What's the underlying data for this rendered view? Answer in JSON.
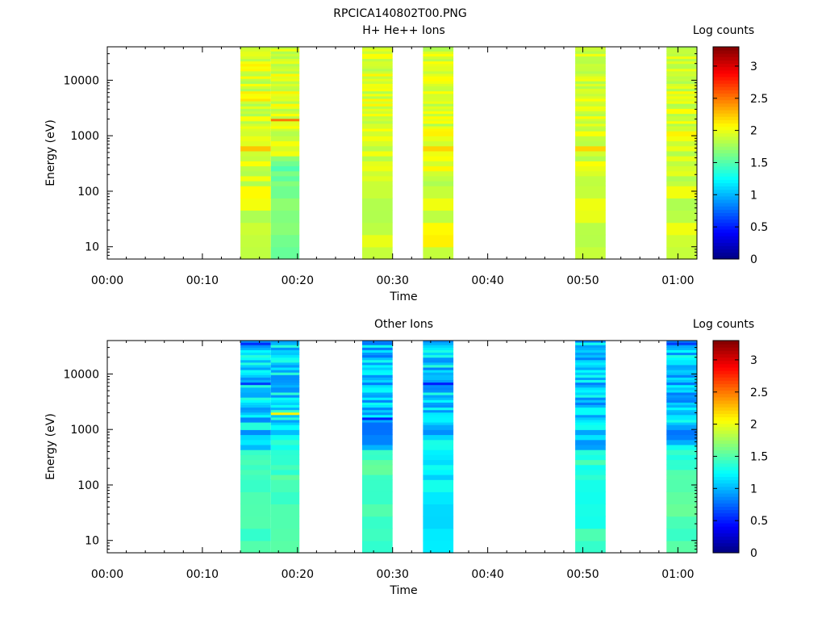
{
  "figure_title": "RPCICA140802T00.PNG",
  "colorbar": {
    "label": "Log counts",
    "min": 0,
    "max": 3.3,
    "ticks": [
      0,
      0.5,
      1,
      1.5,
      2,
      2.5,
      3
    ],
    "tick_labels": [
      "0",
      "0.5",
      "1",
      "1.5",
      "2",
      "2.5",
      "3"
    ],
    "colormap": "jet"
  },
  "chart_data": [
    {
      "type": "heatmap",
      "title": "H+ He++ Ions",
      "xlabel": "Time",
      "ylabel": "Energy (eV)",
      "xlim_minutes": [
        0,
        62
      ],
      "x_ticks_minutes": [
        0,
        10,
        20,
        30,
        40,
        50,
        60
      ],
      "x_tick_labels": [
        "00:00",
        "00:10",
        "00:20",
        "00:30",
        "00:40",
        "00:50",
        "01:00"
      ],
      "y_scale": "log",
      "ylim": [
        6,
        40000
      ],
      "y_ticks": [
        10,
        100,
        1000,
        10000
      ],
      "y_tick_labels": [
        "10",
        "100",
        "1000",
        "10000"
      ],
      "columns": [
        {
          "t0": 14.0,
          "t1": 17.2,
          "seed": 11,
          "base": 1.95,
          "amp": 0.18,
          "events": [
            {
              "e": 600,
              "v": 2.25
            },
            {
              "e": 4500,
              "v": 2.15
            }
          ]
        },
        {
          "t0": 17.2,
          "t1": 20.2,
          "seed": 23,
          "base": 1.95,
          "amp": 0.16,
          "low": 1.6,
          "events": [
            {
              "e": 1900,
              "v": 2.5
            }
          ]
        },
        {
          "t0": 26.8,
          "t1": 30.0,
          "seed": 37,
          "base": 1.95,
          "amp": 0.15,
          "events": []
        },
        {
          "t0": 33.2,
          "t1": 36.4,
          "seed": 41,
          "base": 1.95,
          "amp": 0.16,
          "events": [
            {
              "e": 600,
              "v": 2.2
            }
          ]
        },
        {
          "t0": 49.2,
          "t1": 52.4,
          "seed": 53,
          "base": 1.95,
          "amp": 0.15,
          "events": [
            {
              "e": 600,
              "v": 2.2
            }
          ]
        },
        {
          "t0": 58.8,
          "t1": 62.0,
          "seed": 67,
          "base": 1.95,
          "amp": 0.16,
          "events": []
        }
      ]
    },
    {
      "type": "heatmap",
      "title": "Other Ions",
      "xlabel": "Time",
      "ylabel": "Energy (eV)",
      "xlim_minutes": [
        0,
        62
      ],
      "x_ticks_minutes": [
        0,
        10,
        20,
        30,
        40,
        50,
        60
      ],
      "x_tick_labels": [
        "00:00",
        "00:10",
        "00:20",
        "00:30",
        "00:40",
        "00:50",
        "01:00"
      ],
      "y_scale": "log",
      "ylim": [
        6,
        40000
      ],
      "y_ticks": [
        10,
        100,
        1000,
        10000
      ],
      "y_tick_labels": [
        "10",
        "100",
        "1000",
        "10000"
      ],
      "columns": [
        {
          "t0": 14.0,
          "t1": 17.2,
          "seed": 71,
          "base": 1.1,
          "amp": 0.28,
          "low": 1.45,
          "events": [
            {
              "e": 35000,
              "v": 0.55
            },
            {
              "e": 7000,
              "v": 0.6
            }
          ]
        },
        {
          "t0": 17.2,
          "t1": 20.2,
          "seed": 83,
          "base": 1.15,
          "amp": 0.28,
          "low": 1.45,
          "events": [
            {
              "e": 1900,
              "v": 2.1
            }
          ]
        },
        {
          "t0": 26.8,
          "t1": 30.0,
          "seed": 97,
          "base": 1.05,
          "amp": 0.28,
          "low": 1.5,
          "events": [
            {
              "e": 1600,
              "v": 0.5
            }
          ]
        },
        {
          "t0": 33.2,
          "t1": 36.4,
          "seed": 101,
          "base": 1.1,
          "amp": 0.28,
          "low": 1.2,
          "events": [
            {
              "e": 7000,
              "v": 0.5
            }
          ]
        },
        {
          "t0": 49.2,
          "t1": 52.4,
          "seed": 113,
          "base": 1.05,
          "amp": 0.26,
          "low": 1.4,
          "events": []
        },
        {
          "t0": 58.8,
          "t1": 62.0,
          "seed": 127,
          "base": 1.05,
          "amp": 0.28,
          "low": 1.45,
          "events": [
            {
              "e": 35000,
              "v": 0.6
            }
          ]
        }
      ]
    }
  ]
}
